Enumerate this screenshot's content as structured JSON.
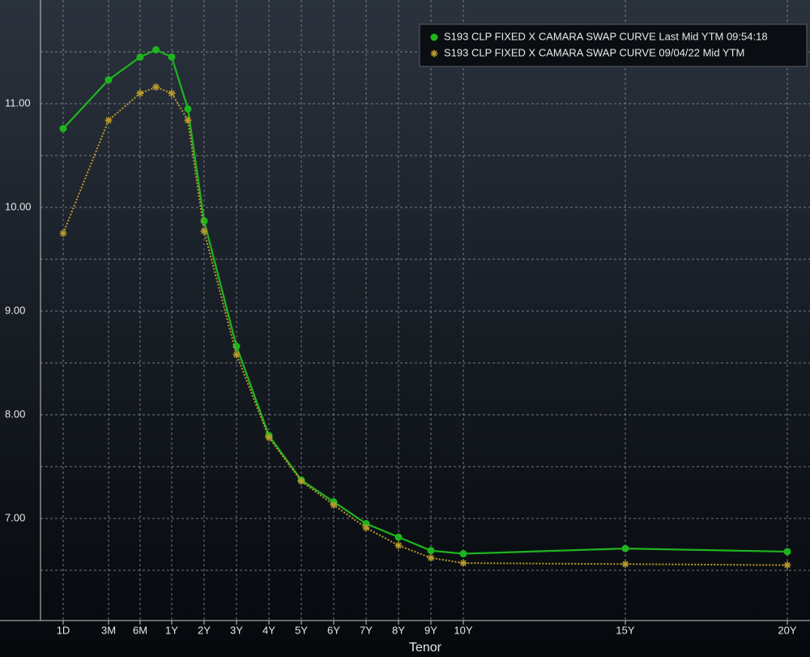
{
  "chart_data": {
    "type": "line",
    "x_label": "Tenor",
    "x": [
      0.0027,
      0.25,
      0.5,
      0.75,
      1,
      1.5,
      2,
      3,
      4,
      5,
      6,
      7,
      8,
      9,
      10,
      15,
      20
    ],
    "xticks": [
      {
        "value": 0.0027,
        "label": "1D"
      },
      {
        "value": 0.25,
        "label": "3M"
      },
      {
        "value": 0.5,
        "label": "6M"
      },
      {
        "value": 1,
        "label": "1Y"
      },
      {
        "value": 2,
        "label": "2Y"
      },
      {
        "value": 3,
        "label": "3Y"
      },
      {
        "value": 4,
        "label": "4Y"
      },
      {
        "value": 5,
        "label": "5Y"
      },
      {
        "value": 6,
        "label": "6Y"
      },
      {
        "value": 7,
        "label": "7Y"
      },
      {
        "value": 8,
        "label": "8Y"
      },
      {
        "value": 9,
        "label": "9Y"
      },
      {
        "value": 10,
        "label": "10Y"
      },
      {
        "value": 15,
        "label": "15Y"
      },
      {
        "value": 20,
        "label": "20Y"
      }
    ],
    "ylim": [
      6.0,
      12.0
    ],
    "yticks": [
      {
        "value": 7,
        "label": "7.00"
      },
      {
        "value": 8,
        "label": "8.00"
      },
      {
        "value": 9,
        "label": "9.00"
      },
      {
        "value": 10,
        "label": "10.00"
      },
      {
        "value": 11,
        "label": "11.00"
      }
    ],
    "yticks_minor": [
      6.5,
      7.5,
      8.5,
      9.5,
      10.5,
      11.5
    ],
    "grid": true,
    "legend": "top-right",
    "series": [
      {
        "name": "S193 CLP FIXED X CAMARA SWAP CURVE Last Mid YTM 09:54:18",
        "color": "#1fb41f",
        "marker": "circle",
        "line_style": "solid",
        "values": [
          10.76,
          11.23,
          11.45,
          11.52,
          11.45,
          10.95,
          9.87,
          8.66,
          7.8,
          7.37,
          7.16,
          6.95,
          6.82,
          6.69,
          6.66,
          6.71,
          6.68
        ]
      },
      {
        "name": "S193 CLP FIXED X CAMARA SWAP CURVE 09/04/22 Mid YTM",
        "color": "#b89a2c",
        "marker": "asterisk",
        "line_style": "dotted",
        "values": [
          9.75,
          10.84,
          11.1,
          11.16,
          11.1,
          10.84,
          9.77,
          8.58,
          7.78,
          7.36,
          7.13,
          6.91,
          6.74,
          6.62,
          6.57,
          6.56,
          6.55
        ]
      }
    ]
  }
}
